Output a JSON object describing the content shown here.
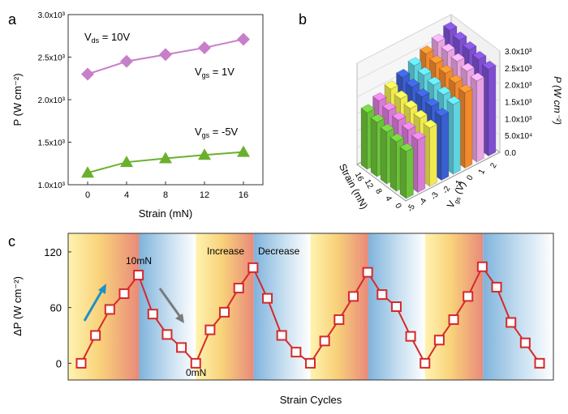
{
  "panel_letters": {
    "a": "a",
    "b": "b",
    "c": "c"
  },
  "chart_data": [
    {
      "panel": "a",
      "type": "line",
      "xlabel": "Strain (mN)",
      "ylabel": "P (W cm⁻²)",
      "x": [
        0,
        4,
        8,
        12,
        16
      ],
      "xlim": [
        -2,
        18
      ],
      "ylim": [
        1000,
        3000
      ],
      "xticks": [
        "0",
        "4",
        "8",
        "12",
        "16"
      ],
      "yticks": [
        {
          "value": 1000,
          "label": "1.0x10³"
        },
        {
          "value": 1500,
          "label": "1.5x10³"
        },
        {
          "value": 2000,
          "label": "2.0x10³"
        },
        {
          "value": 2500,
          "label": "2.5x10³"
        },
        {
          "value": 3000,
          "label": "3.0x10³"
        }
      ],
      "annotations": {
        "vds_main": "V",
        "vds_sub": "ds",
        "vds_rest": " = 10V",
        "vgs1_main": "V",
        "vgs1_sub": "gs",
        "vgs1_rest": " = 1V",
        "vgs2_main": "V",
        "vgs2_sub": "gs",
        "vgs2_rest": " = -5V"
      },
      "series": [
        {
          "color": "#c77fc9",
          "marker": "diamond",
          "values": [
            2300,
            2450,
            2530,
            2610,
            2710
          ]
        },
        {
          "color": "#6ab02e",
          "marker": "triangle",
          "values": [
            1140,
            1265,
            1310,
            1350,
            1385
          ]
        }
      ]
    },
    {
      "panel": "b",
      "type": "bar",
      "xlabel": "Strain (mN)",
      "ylabel_main": "V",
      "ylabel_sub": "gs",
      "ylabel_rest": " (V)",
      "zlabel": "P (W cm⁻²)",
      "strain_ticks": [
        "16",
        "12",
        "8",
        "4",
        "0"
      ],
      "vgs_ticks": [
        "-5",
        "-4",
        "-3",
        "-2",
        "-1",
        "0",
        "1",
        "2"
      ],
      "zticks": [
        "0.0",
        "5.0x10⁴",
        "1.0x10³",
        "1.5x10³",
        "2.0x10³",
        "2.5x10³",
        "3.0x10³"
      ],
      "colors": [
        "#6cc23a",
        "#d77bd6",
        "#f0ea50",
        "#3a5fcf",
        "#5fd3e0",
        "#f18a2c",
        "#e9a3e0",
        "#7d4fd0"
      ]
    },
    {
      "panel": "c",
      "type": "line",
      "xlabel": "Strain Cycles",
      "ylabel": "ΔP (W cm⁻²)",
      "ylim": [
        -18,
        140
      ],
      "yticks": [
        "0",
        "60",
        "120"
      ],
      "color": "#d42a2a",
      "values": [
        0,
        30,
        58,
        75,
        95,
        53,
        31,
        17,
        0,
        36,
        55,
        81,
        103,
        70,
        30,
        12,
        0,
        24,
        47,
        72,
        98,
        74,
        61,
        29,
        0,
        25,
        47,
        72,
        104,
        82,
        44,
        22,
        0
      ],
      "annotations": {
        "peak": "10mN",
        "zero": "0mN",
        "increase": "Increase",
        "decrease": "Decrease"
      }
    }
  ]
}
